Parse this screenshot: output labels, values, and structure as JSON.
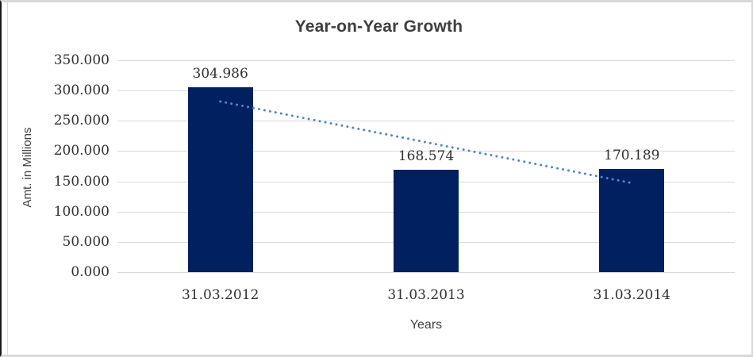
{
  "chart_data": {
    "type": "bar",
    "title": "Year-on-Year Growth",
    "categories": [
      "31.03.2012",
      "31.03.2013",
      "31.03.2014"
    ],
    "values": [
      304.986,
      168.574,
      170.189
    ],
    "data_labels": [
      "304.986",
      "168.574",
      "170.189"
    ],
    "xlabel": "Years",
    "ylabel": "Amt. in Millions",
    "ylim": [
      0,
      350
    ],
    "ytick_step": 50,
    "yticks": [
      "350.000",
      "300.000",
      "250.000",
      "200.000",
      "150.000",
      "100.000",
      "50.000",
      "0.000"
    ],
    "grid": true,
    "legend": false,
    "colors": {
      "bar": "#002060",
      "trendline": "#4e87c8",
      "gridline": "#d9d9d9",
      "title_text": "#3f3f3f",
      "tick_text": "#303030"
    },
    "trendline": {
      "style": "dotted",
      "fit": "linear",
      "fitted_values": [
        281.98,
        214.58,
        147.19
      ]
    }
  }
}
